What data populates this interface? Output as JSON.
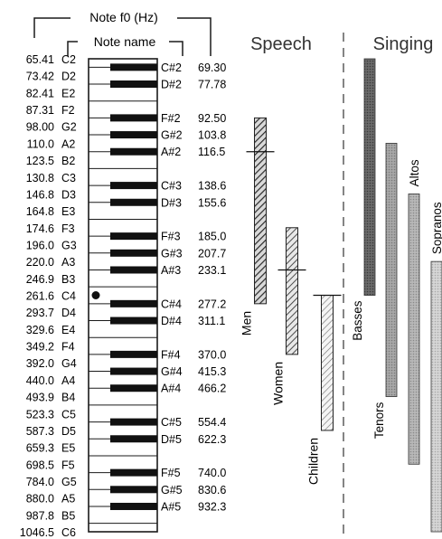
{
  "header": {
    "f0_label": "Note f0 (Hz)",
    "name_label": "Note name"
  },
  "white_keys": [
    {
      "freq": "65.41",
      "name": "C2"
    },
    {
      "freq": "73.42",
      "name": "D2"
    },
    {
      "freq": "82.41",
      "name": "E2"
    },
    {
      "freq": "87.31",
      "name": "F2"
    },
    {
      "freq": "98.00",
      "name": "G2"
    },
    {
      "freq": "110.0",
      "name": "A2"
    },
    {
      "freq": "123.5",
      "name": "B2"
    },
    {
      "freq": "130.8",
      "name": "C3"
    },
    {
      "freq": "146.8",
      "name": "D3"
    },
    {
      "freq": "164.8",
      "name": "E3"
    },
    {
      "freq": "174.6",
      "name": "F3"
    },
    {
      "freq": "196.0",
      "name": "G3"
    },
    {
      "freq": "220.0",
      "name": "A3"
    },
    {
      "freq": "246.9",
      "name": "B3"
    },
    {
      "freq": "261.6",
      "name": "C4"
    },
    {
      "freq": "293.7",
      "name": "D4"
    },
    {
      "freq": "329.6",
      "name": "E4"
    },
    {
      "freq": "349.2",
      "name": "F4"
    },
    {
      "freq": "392.0",
      "name": "G4"
    },
    {
      "freq": "440.0",
      "name": "A4"
    },
    {
      "freq": "493.9",
      "name": "B4"
    },
    {
      "freq": "523.3",
      "name": "C5"
    },
    {
      "freq": "587.3",
      "name": "D5"
    },
    {
      "freq": "659.3",
      "name": "E5"
    },
    {
      "freq": "698.5",
      "name": "F5"
    },
    {
      "freq": "784.0",
      "name": "G5"
    },
    {
      "freq": "880.0",
      "name": "A5"
    },
    {
      "freq": "987.8",
      "name": "B5"
    },
    {
      "freq": "1046.5",
      "name": "C6"
    }
  ],
  "black_keys": [
    {
      "name": "C#2",
      "freq": "69.30"
    },
    {
      "name": "D#2",
      "freq": "77.78"
    },
    {
      "name": "F#2",
      "freq": "92.50"
    },
    {
      "name": "G#2",
      "freq": "103.8"
    },
    {
      "name": "A#2",
      "freq": "116.5"
    },
    {
      "name": "C#3",
      "freq": "138.6"
    },
    {
      "name": "D#3",
      "freq": "155.6"
    },
    {
      "name": "F#3",
      "freq": "185.0"
    },
    {
      "name": "G#3",
      "freq": "207.7"
    },
    {
      "name": "A#3",
      "freq": "233.1"
    },
    {
      "name": "C#4",
      "freq": "277.2"
    },
    {
      "name": "D#4",
      "freq": "311.1"
    },
    {
      "name": "F#4",
      "freq": "370.0"
    },
    {
      "name": "G#4",
      "freq": "415.3"
    },
    {
      "name": "A#4",
      "freq": "466.2"
    },
    {
      "name": "C#5",
      "freq": "554.4"
    },
    {
      "name": "D#5",
      "freq": "622.3"
    },
    {
      "name": "F#5",
      "freq": "740.0"
    },
    {
      "name": "G#5",
      "freq": "830.6"
    },
    {
      "name": "A#5",
      "freq": "932.3"
    }
  ],
  "middle_c_marker": "C4",
  "speech": {
    "title": "Speech",
    "ranges": [
      {
        "label": "Men",
        "low": "C#4",
        "high": "F#2",
        "mean": "A#2",
        "fill": "#5a5a5a"
      },
      {
        "label": "Women",
        "low": "F#4",
        "high": "F3",
        "mean": "A#3",
        "fill": "#7d7d7d"
      },
      {
        "label": "Children",
        "low": "D5",
        "high": "C4",
        "mean": "C4",
        "fill": "#c8c8c8"
      }
    ]
  },
  "singing": {
    "title": "Singing",
    "ranges": [
      {
        "label": "Basses",
        "low": "C2",
        "high": "C4",
        "fill": "#6e6e6e"
      },
      {
        "label": "Tenors",
        "low": "A2",
        "high": "B4",
        "fill": "#a3a3a3"
      },
      {
        "label": "Altos",
        "low": "D3",
        "high": "F5",
        "fill": "#b6b6b6"
      },
      {
        "label": "Sopranos",
        "low": "A3",
        "high": "C6",
        "fill": "#d3d3d3"
      }
    ]
  }
}
